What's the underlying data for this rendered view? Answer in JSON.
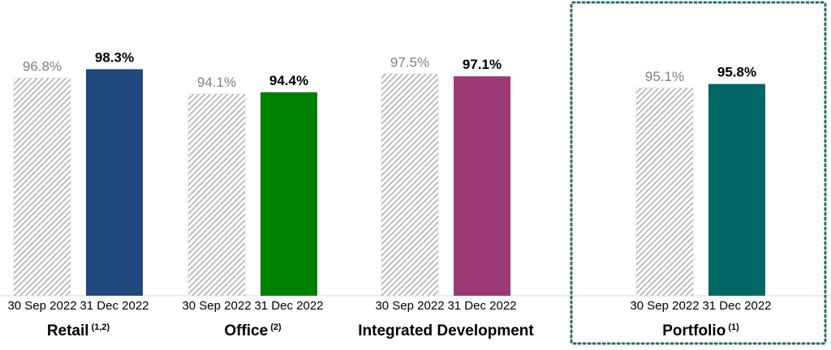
{
  "chart_data": {
    "type": "bar",
    "groups": [
      {
        "label": "Retail",
        "note": "(1,2)",
        "bars": [
          {
            "period": "30 Sep 2022",
            "value": 96.8,
            "label": "96.8%"
          },
          {
            "period": "31 Dec 2022",
            "value": 98.3,
            "label": "98.3%"
          }
        ],
        "color": "#1f497d"
      },
      {
        "label": "Office",
        "note": "(2)",
        "bars": [
          {
            "period": "30 Sep 2022",
            "value": 94.1,
            "label": "94.1%"
          },
          {
            "period": "31 Dec 2022",
            "value": 94.4,
            "label": "94.4%"
          }
        ],
        "color": "#008000"
      },
      {
        "label": "Integrated Development",
        "note": "",
        "bars": [
          {
            "period": "30 Sep 2022",
            "value": 97.5,
            "label": "97.5%"
          },
          {
            "period": "31 Dec 2022",
            "value": 97.1,
            "label": "97.1%"
          }
        ],
        "color": "#9b3a75"
      },
      {
        "label": "Portfolio",
        "note": "(1)",
        "bars": [
          {
            "period": "30 Sep 2022",
            "value": 95.1,
            "label": "95.1%"
          },
          {
            "period": "31 Dec 2022",
            "value": 95.8,
            "label": "95.8%"
          }
        ],
        "color": "#006666",
        "highlighted": true
      }
    ],
    "series": [
      {
        "name": "30 Sep 2022",
        "style": "hatched-grey"
      },
      {
        "name": "31 Dec 2022",
        "style": "solid"
      }
    ],
    "ylim": [
      0,
      100
    ],
    "grid": false,
    "legend": "none",
    "colors": {
      "hatch": "#9a9a9a",
      "highlight_border": "#2e6b6b"
    }
  }
}
